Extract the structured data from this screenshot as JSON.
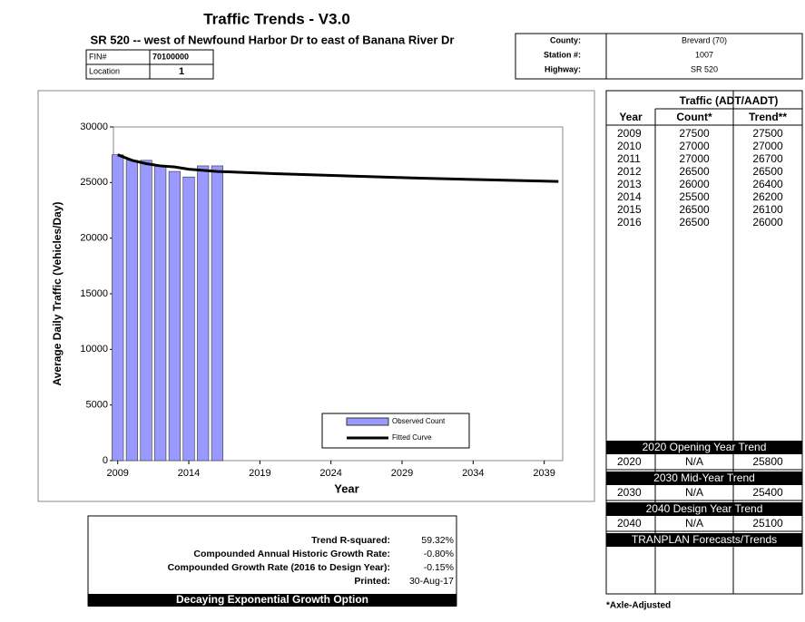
{
  "header": {
    "title": "Traffic Trends - V3.0",
    "subtitle": "SR 520 -- west of Newfound Harbor Dr to east of Banana River Dr",
    "fin_label": "FIN#",
    "fin": "70100000",
    "location_label": "Location",
    "location": "1"
  },
  "info": [
    {
      "label": "County:",
      "value": "Brevard (70)"
    },
    {
      "label": "Station #:",
      "value": "1007"
    },
    {
      "label": "Highway:",
      "value": "SR 520"
    }
  ],
  "chart_data": {
    "type": "bar",
    "y_label": "Average Daily Traffic (Vehicles/Day)",
    "x_label": "Year",
    "xlim": [
      2008.7,
      2040.3
    ],
    "xticks": [
      2009,
      2014,
      2019,
      2024,
      2029,
      2034,
      2039
    ],
    "ylim": [
      0,
      30000
    ],
    "yticks": [
      0,
      5000,
      10000,
      15000,
      20000,
      25000,
      30000
    ],
    "series": [
      {
        "name": "Observed Count",
        "color": "#9999ff",
        "type": "bar",
        "x": [
          2009,
          2010,
          2011,
          2012,
          2013,
          2014,
          2015,
          2016
        ],
        "values": [
          27500,
          27000,
          27000,
          26500,
          26000,
          25500,
          26500,
          26500
        ]
      },
      {
        "name": "Fitted Curve",
        "color": "#000000",
        "type": "line",
        "x": [
          2009,
          2010,
          2011,
          2012,
          2013,
          2014,
          2015,
          2016,
          2020,
          2030,
          2040
        ],
        "values": [
          27500,
          27000,
          26700,
          26500,
          26400,
          26200,
          26100,
          26000,
          25800,
          25400,
          25100
        ]
      }
    ]
  },
  "table": {
    "group_header": "Traffic (ADT/AADT)",
    "columns": [
      "Year",
      "Count*",
      "Trend**"
    ],
    "rows": [
      [
        2009,
        27500,
        27500
      ],
      [
        2010,
        27000,
        27000
      ],
      [
        2011,
        27000,
        26700
      ],
      [
        2012,
        26500,
        26500
      ],
      [
        2013,
        26000,
        26400
      ],
      [
        2014,
        25500,
        26200
      ],
      [
        2015,
        26500,
        26100
      ],
      [
        2016,
        26500,
        26000
      ]
    ],
    "sections": [
      {
        "title": "2020 Opening Year Trend",
        "row": [
          2020,
          "N/A",
          25800
        ]
      },
      {
        "title": "2030 Mid-Year Trend",
        "row": [
          2030,
          "N/A",
          25400
        ]
      },
      {
        "title": "2040 Design Year Trend",
        "row": [
          2040,
          "N/A",
          25100
        ]
      }
    ],
    "footer": "TRANPLAN Forecasts/Trends",
    "note": "*Axle-Adjusted"
  },
  "stats": {
    "items": [
      {
        "label": "Trend R-squared:",
        "value": "59.32%"
      },
      {
        "label": "Compounded Annual Historic Growth Rate:",
        "value": "-0.80%"
      },
      {
        "label": "Compounded Growth Rate (2016 to Design Year):",
        "value": "-0.15%"
      },
      {
        "label": "Printed:",
        "value": "30-Aug-17"
      }
    ],
    "banner": "Decaying Exponential Growth Option"
  }
}
